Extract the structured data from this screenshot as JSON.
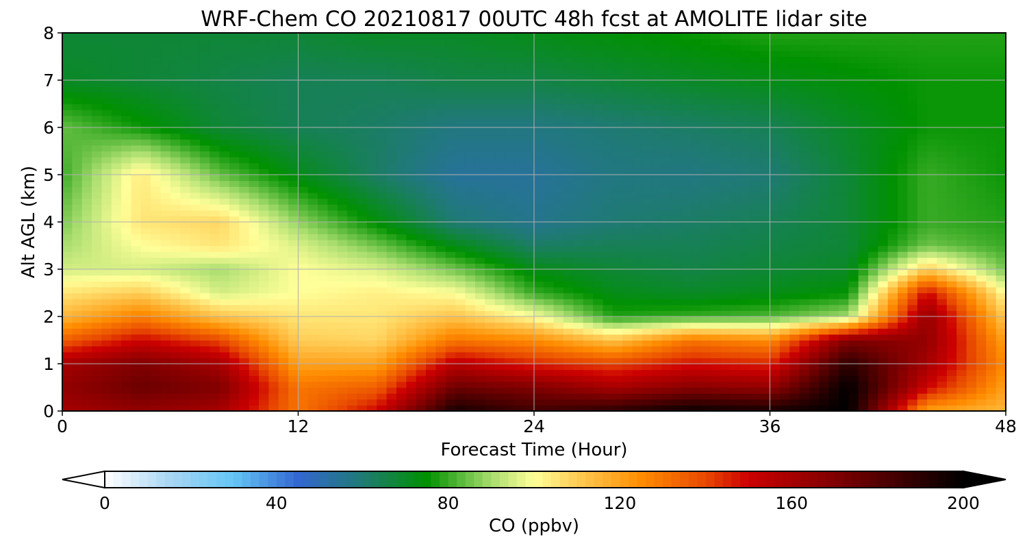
{
  "chart_data": {
    "type": "heatmap",
    "title": "WRF-Chem CO  20210817 00UTC 48h fcst at AMOLITE lidar site",
    "xlabel": "Forecast Time (Hour)",
    "ylabel": "Alt AGL (km)",
    "xlim": [
      0,
      48
    ],
    "ylim": [
      0,
      8
    ],
    "x_ticks": [
      "0",
      "12",
      "24",
      "36",
      "48"
    ],
    "y_ticks": [
      "0",
      "1",
      "2",
      "3",
      "4",
      "5",
      "6",
      "7",
      "8"
    ],
    "grid": true,
    "x": [
      0,
      4,
      8,
      12,
      16,
      20,
      24,
      28,
      32,
      36,
      40,
      44,
      48
    ],
    "y": [
      0,
      0.5,
      1,
      1.5,
      2,
      2.5,
      3,
      3.5,
      4,
      5,
      6,
      7,
      8
    ],
    "z": [
      [
        160,
        165,
        160,
        130,
        150,
        195,
        185,
        190,
        198,
        195,
        200,
        120,
        115
      ],
      [
        165,
        175,
        170,
        130,
        135,
        175,
        170,
        160,
        168,
        165,
        200,
        150,
        120
      ],
      [
        160,
        170,
        160,
        120,
        120,
        155,
        145,
        140,
        148,
        145,
        190,
        160,
        125
      ],
      [
        135,
        150,
        140,
        110,
        108,
        130,
        125,
        112,
        130,
        125,
        170,
        165,
        120
      ],
      [
        115,
        128,
        112,
        105,
        105,
        112,
        100,
        78,
        80,
        82,
        90,
        165,
        110
      ],
      [
        105,
        110,
        95,
        100,
        103,
        100,
        80,
        72,
        70,
        72,
        75,
        150,
        100
      ],
      [
        95,
        95,
        90,
        100,
        96,
        85,
        72,
        68,
        66,
        68,
        70,
        110,
        85
      ],
      [
        90,
        100,
        105,
        96,
        85,
        72,
        62,
        64,
        64,
        66,
        68,
        85,
        80
      ],
      [
        86,
        105,
        108,
        88,
        74,
        60,
        56,
        60,
        62,
        64,
        68,
        80,
        78
      ],
      [
        80,
        104,
        84,
        72,
        62,
        54,
        54,
        58,
        58,
        60,
        68,
        80,
        76
      ],
      [
        84,
        76,
        68,
        64,
        62,
        58,
        58,
        60,
        62,
        64,
        70,
        76,
        76
      ],
      [
        70,
        68,
        66,
        64,
        64,
        66,
        66,
        68,
        70,
        72,
        74,
        76,
        76
      ],
      [
        68,
        68,
        68,
        68,
        70,
        70,
        72,
        74,
        76,
        78,
        78,
        78,
        78
      ]
    ],
    "colorbar": {
      "label": "CO  (ppbv)",
      "range": [
        0,
        200
      ],
      "ticks": [
        "0",
        "40",
        "80",
        "120",
        "160",
        "200"
      ],
      "extend": "both",
      "stops": [
        {
          "value": 0,
          "color": "#ffffff"
        },
        {
          "value": 15,
          "color": "#a9d6f3"
        },
        {
          "value": 30,
          "color": "#64c5f5"
        },
        {
          "value": 45,
          "color": "#3367d1"
        },
        {
          "value": 60,
          "color": "#1f7a74"
        },
        {
          "value": 75,
          "color": "#009100"
        },
        {
          "value": 90,
          "color": "#a8dd6e"
        },
        {
          "value": 100,
          "color": "#ffff99"
        },
        {
          "value": 110,
          "color": "#ffcc55"
        },
        {
          "value": 125,
          "color": "#ff8c00"
        },
        {
          "value": 140,
          "color": "#e84800"
        },
        {
          "value": 150,
          "color": "#cc0000"
        },
        {
          "value": 170,
          "color": "#800000"
        },
        {
          "value": 185,
          "color": "#400000"
        },
        {
          "value": 200,
          "color": "#000000"
        }
      ]
    }
  }
}
